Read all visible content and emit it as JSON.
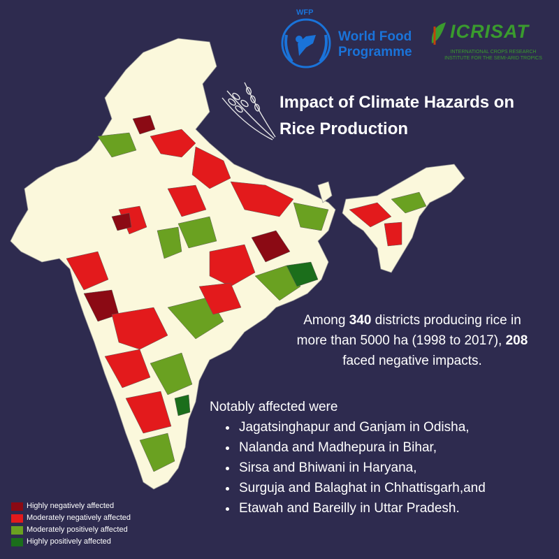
{
  "logos": {
    "wfp_abbr": "WFP",
    "wfp_line1": "World Food",
    "wfp_line2": "Programme",
    "icrisat_name": "ICRISAT",
    "icrisat_sub_line1": "INTERNATIONAL CROPS RESEARCH",
    "icrisat_sub_line2": "INSTITUTE FOR THE SEMI-ARID TROPICS"
  },
  "title_line1": "Impact of Climate Hazards on",
  "title_line2": "Rice Production",
  "stat": {
    "pre": "Among ",
    "total_districts": "340",
    "mid": " districts producing rice in more than 5000 ha (1998 to 2017), ",
    "negative_districts": "208",
    "post": " faced negative impacts."
  },
  "notable": {
    "intro": "Notably affected were",
    "items": [
      "Jagatsinghapur and Ganjam in Odisha,",
      "Nalanda and Madhepura in Bihar,",
      "Sirsa and Bhiwani in Haryana,",
      "Surguja and Balaghat in Chhattisgarh,and",
      "Etawah and Bareilly in Uttar Pradesh."
    ]
  },
  "legend": [
    {
      "label": "Highly negatively affected",
      "color": "#8b0a14"
    },
    {
      "label": "Moderately negatively affected",
      "color": "#e31a1c"
    },
    {
      "label": "Moderately positively affected",
      "color": "#6aa121"
    },
    {
      "label": "Highly positively affected",
      "color": "#1b6e1b"
    }
  ],
  "colors": {
    "background": "#2e2b4f",
    "land": "#fbf8dc",
    "wfp_blue": "#1a73d9",
    "icrisat_green": "#3a9b2e"
  },
  "map_regions": [
    {
      "category": 0
    },
    {
      "category": 1
    },
    {
      "category": 1
    },
    {
      "category": 2
    },
    {
      "category": 1
    },
    {
      "category": 2
    },
    {
      "category": 1
    },
    {
      "category": 0
    },
    {
      "category": 2
    },
    {
      "category": 1
    },
    {
      "category": 2
    },
    {
      "category": 3
    },
    {
      "category": 1
    },
    {
      "category": 2
    },
    {
      "category": 1
    },
    {
      "category": 0
    },
    {
      "category": 1
    },
    {
      "category": 2
    },
    {
      "category": 1
    },
    {
      "category": 1
    },
    {
      "category": 2
    },
    {
      "category": 3
    },
    {
      "category": 1
    },
    {
      "category": 2
    },
    {
      "category": 0
    },
    {
      "category": 1
    },
    {
      "category": 2
    },
    {
      "category": 1
    }
  ]
}
